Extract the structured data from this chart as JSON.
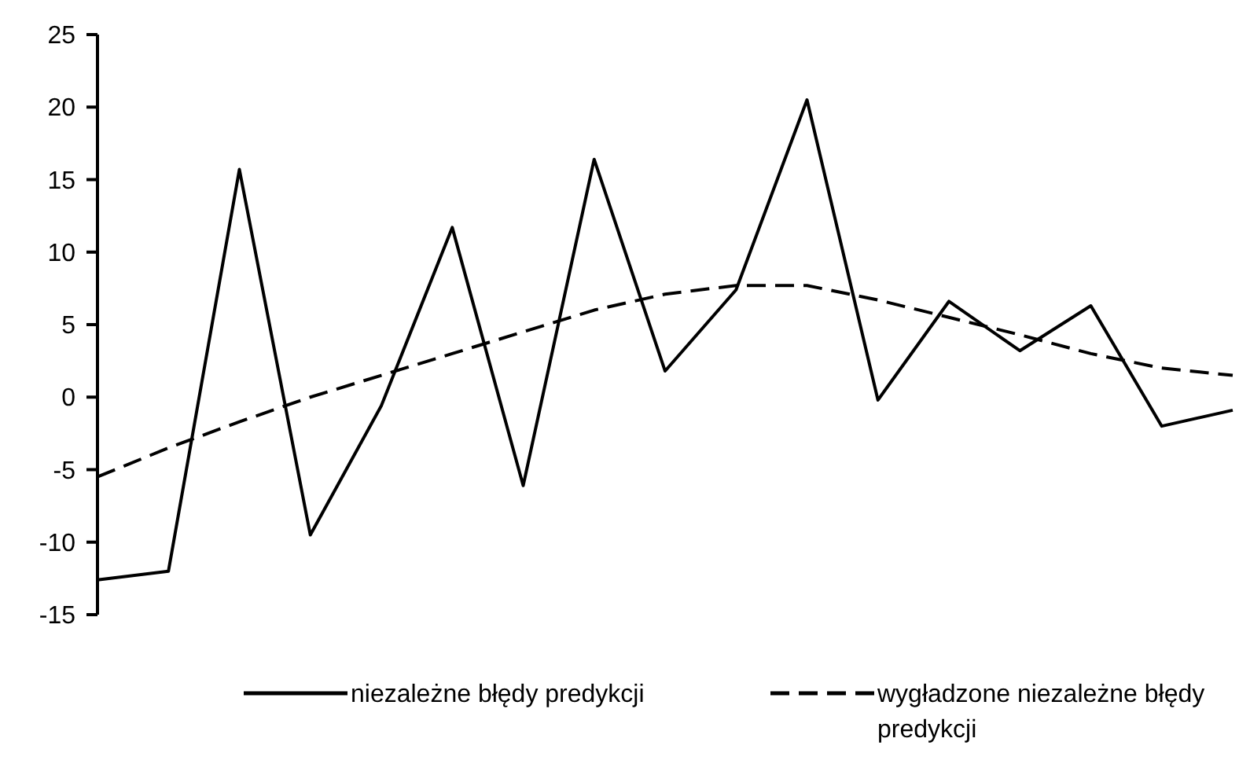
{
  "chart_data": {
    "type": "line",
    "categories": [
      null,
      null,
      null,
      null,
      null,
      null,
      null,
      null,
      null,
      null,
      null,
      null,
      null,
      null,
      null,
      null,
      null
    ],
    "ylim": [
      -15,
      25
    ],
    "yticks": [
      -15,
      -10,
      -5,
      0,
      5,
      10,
      15,
      20,
      25
    ],
    "tick_labels": "y",
    "legend": "bottom",
    "marker": "none",
    "grid": false,
    "series": [
      {
        "name": "niezależne błędy predykcji",
        "color": "#000000",
        "line_style": "solid",
        "values": [
          -12.6,
          -12,
          15.7,
          -9.5,
          -0.6,
          11.7,
          -6.1,
          16.4,
          1.8,
          7.4,
          20.5,
          -0.2,
          6.6,
          3.2,
          6.3,
          -2,
          -0.9
        ]
      },
      {
        "name": "wygładzone niezależne błędy predykcji",
        "color": "#000000",
        "line_style": "dashed",
        "values": [
          -5.5,
          -3.5,
          -1.7,
          0,
          1.5,
          3,
          4.5,
          6,
          7.1,
          7.7,
          7.7,
          6.7,
          5.5,
          4.3,
          3,
          2,
          1.5
        ]
      }
    ]
  }
}
